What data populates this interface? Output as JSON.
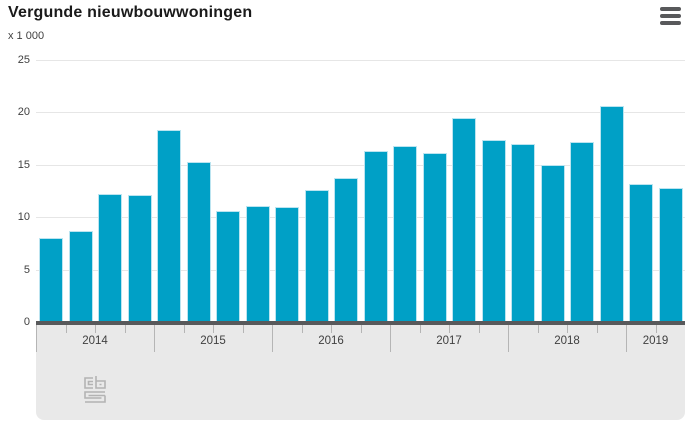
{
  "header": {
    "title": "Vergunde nieuwbouwwoningen",
    "unit": "x 1 000",
    "menu_icon": "hamburger-icon"
  },
  "icons": {
    "menu": "hamburger-icon",
    "footer_logo": "cbs-logo"
  },
  "colors": {
    "bar": "#00a0c6",
    "axis_panel": "#e9e9e9",
    "baseline": "#58595b",
    "gridline": "#e6e6e6",
    "tick": "#b5b5b5",
    "label_text": "#404040",
    "title_text": "#1a1a1a",
    "logo": "#b3b3b3"
  },
  "chart_data": {
    "type": "bar",
    "title": "Vergunde nieuwbouwwoningen",
    "subtitle_unit": "x 1 000",
    "categories": [
      "2014 Q1",
      "2014 Q2",
      "2014 Q3",
      "2014 Q4",
      "2015 Q1",
      "2015 Q2",
      "2015 Q3",
      "2015 Q4",
      "2016 Q1",
      "2016 Q2",
      "2016 Q3",
      "2016 Q4",
      "2017 Q1",
      "2017 Q2",
      "2017 Q3",
      "2017 Q4",
      "2018 Q1",
      "2018 Q2",
      "2018 Q3",
      "2018 Q4",
      "2019 Q1",
      "2019 Q2"
    ],
    "values": [
      8.0,
      8.7,
      12.2,
      12.1,
      18.3,
      15.3,
      10.6,
      11.1,
      11.0,
      12.6,
      13.7,
      16.3,
      16.8,
      16.1,
      19.5,
      17.4,
      17.0,
      15.0,
      17.2,
      20.6,
      13.2,
      12.8
    ],
    "x_year_labels": [
      "2014",
      "2015",
      "2016",
      "2017",
      "2018",
      "2019"
    ],
    "quarters_per_year": [
      4,
      4,
      4,
      4,
      4,
      2
    ],
    "y_ticks": [
      0,
      5,
      10,
      15,
      20,
      25
    ],
    "ylim": [
      0,
      25
    ],
    "xlabel": "",
    "ylabel": "x 1 000",
    "grid": true,
    "legend": "none"
  }
}
